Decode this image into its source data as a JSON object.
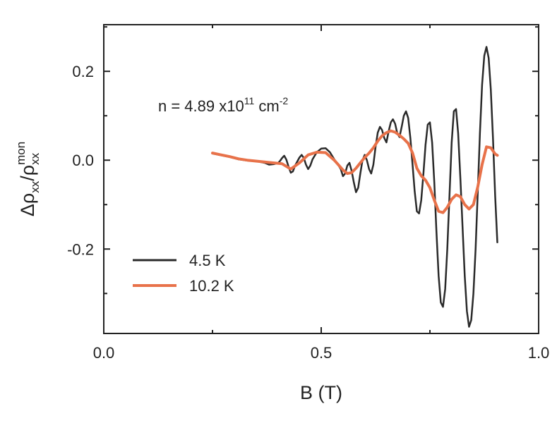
{
  "chart_data": {
    "type": "line",
    "xlabel": "B (T)",
    "ylabel": {
      "prefix": "Δρ",
      "num_sub": "xx",
      "slash": "/ρ",
      "den_sup": "mon",
      "den_sub": "xx"
    },
    "annotation": {
      "base": "n = 4.89 x10",
      "exp1": "11",
      "unit": " cm",
      "exp2": "-2"
    },
    "xlim": [
      0.0,
      1.0
    ],
    "ylim": [
      -0.39,
      0.305
    ],
    "x_ticks": [
      0.0,
      0.5,
      1.0
    ],
    "x_tick_labels": [
      "0.0",
      "0.5",
      "1.0"
    ],
    "y_ticks": [
      -0.2,
      0.0,
      0.2
    ],
    "y_tick_labels": [
      "-0.2",
      "0.0",
      "0.2"
    ],
    "grid": false,
    "legend_position": "bottom-left",
    "series": [
      {
        "name": "4.5 K",
        "color": "#2a2a2a",
        "points": [
          [
            0.25,
            0.015
          ],
          [
            0.27,
            0.011
          ],
          [
            0.29,
            0.007
          ],
          [
            0.31,
            0.002
          ],
          [
            0.33,
            -0.001
          ],
          [
            0.35,
            -0.002
          ],
          [
            0.37,
            -0.006
          ],
          [
            0.38,
            -0.01
          ],
          [
            0.39,
            -0.009
          ],
          [
            0.4,
            -0.007
          ],
          [
            0.405,
            -0.002
          ],
          [
            0.41,
            0.005
          ],
          [
            0.415,
            0.01
          ],
          [
            0.42,
            0.001
          ],
          [
            0.425,
            -0.015
          ],
          [
            0.43,
            -0.028
          ],
          [
            0.435,
            -0.025
          ],
          [
            0.44,
            -0.012
          ],
          [
            0.445,
            -0.003
          ],
          [
            0.45,
            0.006
          ],
          [
            0.455,
            0.012
          ],
          [
            0.46,
            0.005
          ],
          [
            0.465,
            -0.01
          ],
          [
            0.47,
            -0.02
          ],
          [
            0.475,
            -0.012
          ],
          [
            0.48,
            0.002
          ],
          [
            0.49,
            0.018
          ],
          [
            0.5,
            0.026
          ],
          [
            0.51,
            0.027
          ],
          [
            0.52,
            0.018
          ],
          [
            0.53,
            0.002
          ],
          [
            0.54,
            -0.012
          ],
          [
            0.545,
            -0.02
          ],
          [
            0.55,
            -0.036
          ],
          [
            0.555,
            -0.03
          ],
          [
            0.56,
            -0.012
          ],
          [
            0.565,
            -0.006
          ],
          [
            0.57,
            -0.024
          ],
          [
            0.575,
            -0.05
          ],
          [
            0.58,
            -0.072
          ],
          [
            0.585,
            -0.062
          ],
          [
            0.59,
            -0.03
          ],
          [
            0.595,
            0.0
          ],
          [
            0.6,
            0.012
          ],
          [
            0.605,
            0.0
          ],
          [
            0.61,
            -0.02
          ],
          [
            0.615,
            -0.03
          ],
          [
            0.62,
            -0.01
          ],
          [
            0.625,
            0.03
          ],
          [
            0.63,
            0.062
          ],
          [
            0.635,
            0.075
          ],
          [
            0.64,
            0.068
          ],
          [
            0.645,
            0.05
          ],
          [
            0.65,
            0.04
          ],
          [
            0.655,
            0.065
          ],
          [
            0.66,
            0.085
          ],
          [
            0.665,
            0.092
          ],
          [
            0.67,
            0.082
          ],
          [
            0.675,
            0.06
          ],
          [
            0.68,
            0.052
          ],
          [
            0.685,
            0.075
          ],
          [
            0.69,
            0.1
          ],
          [
            0.695,
            0.11
          ],
          [
            0.7,
            0.095
          ],
          [
            0.705,
            0.05
          ],
          [
            0.71,
            -0.01
          ],
          [
            0.715,
            -0.07
          ],
          [
            0.72,
            -0.115
          ],
          [
            0.725,
            -0.12
          ],
          [
            0.73,
            -0.09
          ],
          [
            0.735,
            -0.03
          ],
          [
            0.74,
            0.035
          ],
          [
            0.745,
            0.08
          ],
          [
            0.75,
            0.085
          ],
          [
            0.755,
            0.04
          ],
          [
            0.76,
            -0.05
          ],
          [
            0.765,
            -0.16
          ],
          [
            0.77,
            -0.26
          ],
          [
            0.775,
            -0.32
          ],
          [
            0.78,
            -0.33
          ],
          [
            0.785,
            -0.29
          ],
          [
            0.79,
            -0.2
          ],
          [
            0.795,
            -0.08
          ],
          [
            0.8,
            0.04
          ],
          [
            0.805,
            0.11
          ],
          [
            0.81,
            0.115
          ],
          [
            0.815,
            0.06
          ],
          [
            0.82,
            -0.04
          ],
          [
            0.825,
            -0.15
          ],
          [
            0.83,
            -0.26
          ],
          [
            0.835,
            -0.34
          ],
          [
            0.84,
            -0.375
          ],
          [
            0.845,
            -0.36
          ],
          [
            0.85,
            -0.3
          ],
          [
            0.855,
            -0.2
          ],
          [
            0.86,
            -0.07
          ],
          [
            0.865,
            0.06
          ],
          [
            0.87,
            0.17
          ],
          [
            0.875,
            0.235
          ],
          [
            0.88,
            0.255
          ],
          [
            0.885,
            0.23
          ],
          [
            0.89,
            0.16
          ],
          [
            0.895,
            0.05
          ],
          [
            0.9,
            -0.08
          ],
          [
            0.905,
            -0.185
          ]
        ]
      },
      {
        "name": "10.2 K",
        "color": "#e8724a",
        "points": [
          [
            0.25,
            0.016
          ],
          [
            0.27,
            0.012
          ],
          [
            0.29,
            0.008
          ],
          [
            0.31,
            0.003
          ],
          [
            0.33,
            0.0
          ],
          [
            0.35,
            -0.002
          ],
          [
            0.37,
            -0.004
          ],
          [
            0.39,
            -0.006
          ],
          [
            0.41,
            -0.008
          ],
          [
            0.43,
            -0.02
          ],
          [
            0.45,
            -0.006
          ],
          [
            0.47,
            0.012
          ],
          [
            0.49,
            0.018
          ],
          [
            0.51,
            0.017
          ],
          [
            0.53,
            0.0
          ],
          [
            0.55,
            -0.022
          ],
          [
            0.56,
            -0.03
          ],
          [
            0.57,
            -0.028
          ],
          [
            0.58,
            -0.018
          ],
          [
            0.59,
            -0.006
          ],
          [
            0.6,
            0.006
          ],
          [
            0.61,
            0.016
          ],
          [
            0.62,
            0.028
          ],
          [
            0.63,
            0.043
          ],
          [
            0.64,
            0.055
          ],
          [
            0.65,
            0.062
          ],
          [
            0.66,
            0.066
          ],
          [
            0.67,
            0.063
          ],
          [
            0.68,
            0.056
          ],
          [
            0.69,
            0.048
          ],
          [
            0.7,
            0.038
          ],
          [
            0.71,
            0.016
          ],
          [
            0.72,
            -0.018
          ],
          [
            0.73,
            -0.035
          ],
          [
            0.74,
            -0.045
          ],
          [
            0.75,
            -0.062
          ],
          [
            0.76,
            -0.09
          ],
          [
            0.77,
            -0.115
          ],
          [
            0.78,
            -0.118
          ],
          [
            0.79,
            -0.106
          ],
          [
            0.8,
            -0.088
          ],
          [
            0.81,
            -0.078
          ],
          [
            0.82,
            -0.082
          ],
          [
            0.83,
            -0.1
          ],
          [
            0.84,
            -0.11
          ],
          [
            0.85,
            -0.1
          ],
          [
            0.86,
            -0.06
          ],
          [
            0.87,
            -0.01
          ],
          [
            0.88,
            0.03
          ],
          [
            0.89,
            0.028
          ],
          [
            0.9,
            0.014
          ],
          [
            0.905,
            0.011
          ]
        ]
      }
    ]
  }
}
